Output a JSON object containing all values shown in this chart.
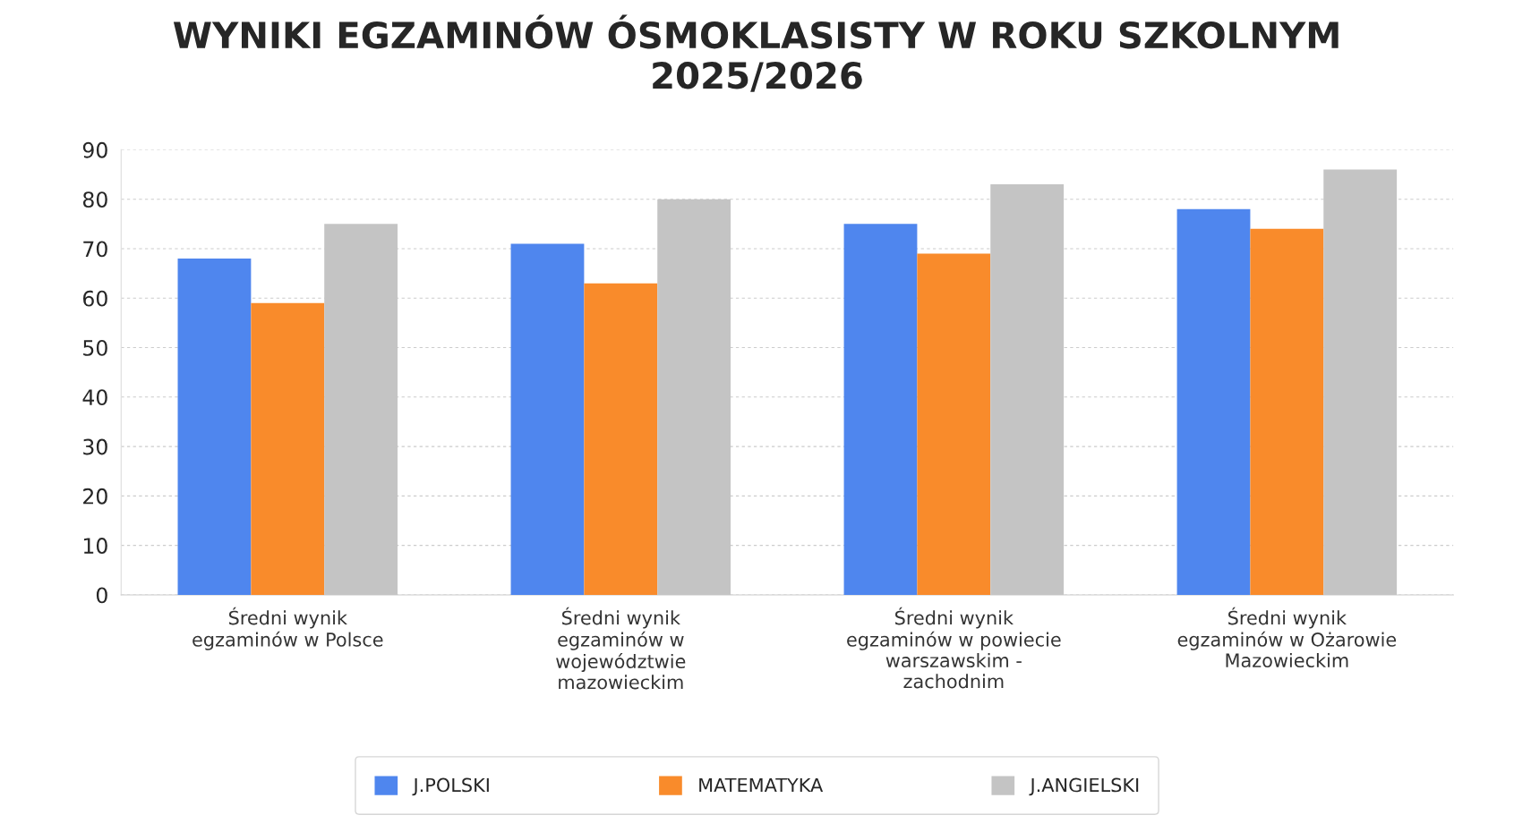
{
  "chart_data": {
    "type": "bar",
    "title": "WYNIKI EGZAMINÓW ÓSMOKLASISTY W ROKU SZKOLNYM 2025/2026",
    "categories": [
      "Średni wynik egzaminów w Polsce",
      "Średni wynik egzaminów w województwie mazowieckim",
      "Średni wynik egzaminów w powiecie warszawskim - zachodnim",
      "Średni wynik egzaminów w Ożarowie Mazowieckim"
    ],
    "series": [
      {
        "name": "J.POLSKI",
        "color": "#4f86ee",
        "values": [
          68,
          71,
          75,
          78
        ]
      },
      {
        "name": "MATEMATYKA",
        "color": "#f98b2b",
        "values": [
          59,
          63,
          69,
          74
        ]
      },
      {
        "name": "J.ANGIELSKI",
        "color": "#c4c4c4",
        "values": [
          75,
          80,
          83,
          86
        ]
      }
    ],
    "ylim": [
      0,
      90
    ],
    "yticks": [
      0,
      10,
      20,
      30,
      40,
      50,
      60,
      70,
      80,
      90
    ],
    "grid": "y",
    "legend": "bottom"
  }
}
